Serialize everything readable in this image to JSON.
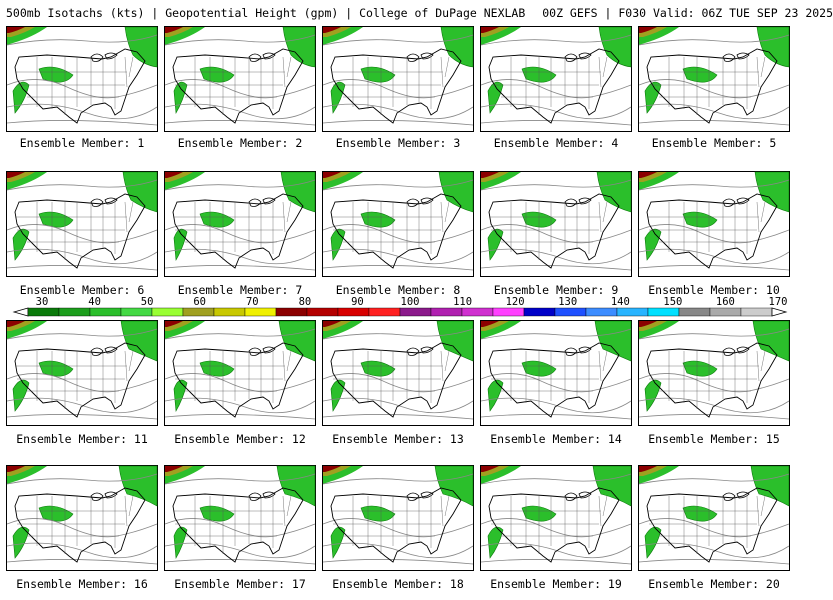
{
  "header": {
    "title": "500mb Isotachs (kts) | Geopotential Height (gpm) | College of DuPage NEXLAB",
    "run": "00Z GEFS | F030 Valid: 06Z TUE SEP 23 2025"
  },
  "members": [
    {
      "label": "Ensemble Member: 1"
    },
    {
      "label": "Ensemble Member: 2"
    },
    {
      "label": "Ensemble Member: 3"
    },
    {
      "label": "Ensemble Member: 4"
    },
    {
      "label": "Ensemble Member: 5"
    },
    {
      "label": "Ensemble Member: 6"
    },
    {
      "label": "Ensemble Member: 7"
    },
    {
      "label": "Ensemble Member: 8"
    },
    {
      "label": "Ensemble Member: 9"
    },
    {
      "label": "Ensemble Member: 10"
    },
    {
      "label": "Ensemble Member: 11"
    },
    {
      "label": "Ensemble Member: 12"
    },
    {
      "label": "Ensemble Member: 13"
    },
    {
      "label": "Ensemble Member: 14"
    },
    {
      "label": "Ensemble Member: 15"
    },
    {
      "label": "Ensemble Member: 16"
    },
    {
      "label": "Ensemble Member: 17"
    },
    {
      "label": "Ensemble Member: 18"
    },
    {
      "label": "Ensemble Member: 19"
    },
    {
      "label": "Ensemble Member: 20"
    }
  ],
  "colorbar": {
    "labels": [
      "30",
      "40",
      "50",
      "60",
      "70",
      "80",
      "90",
      "100",
      "110",
      "120",
      "130",
      "140",
      "150",
      "160",
      "170"
    ],
    "colors": [
      "#0a7a0a",
      "#1c9e1c",
      "#2bbf2b",
      "#44d944",
      "#99ff33",
      "#a0a020",
      "#c8c800",
      "#f0f000",
      "#8b0000",
      "#b40000",
      "#d80000",
      "#ff2020",
      "#8b1a8b",
      "#b020b0",
      "#d030d0",
      "#ff40ff",
      "#0000c8",
      "#1e50ff",
      "#3c8cff",
      "#28b4ff",
      "#00e0ff",
      "#888888",
      "#aaaaaa",
      "#cccccc"
    ]
  }
}
